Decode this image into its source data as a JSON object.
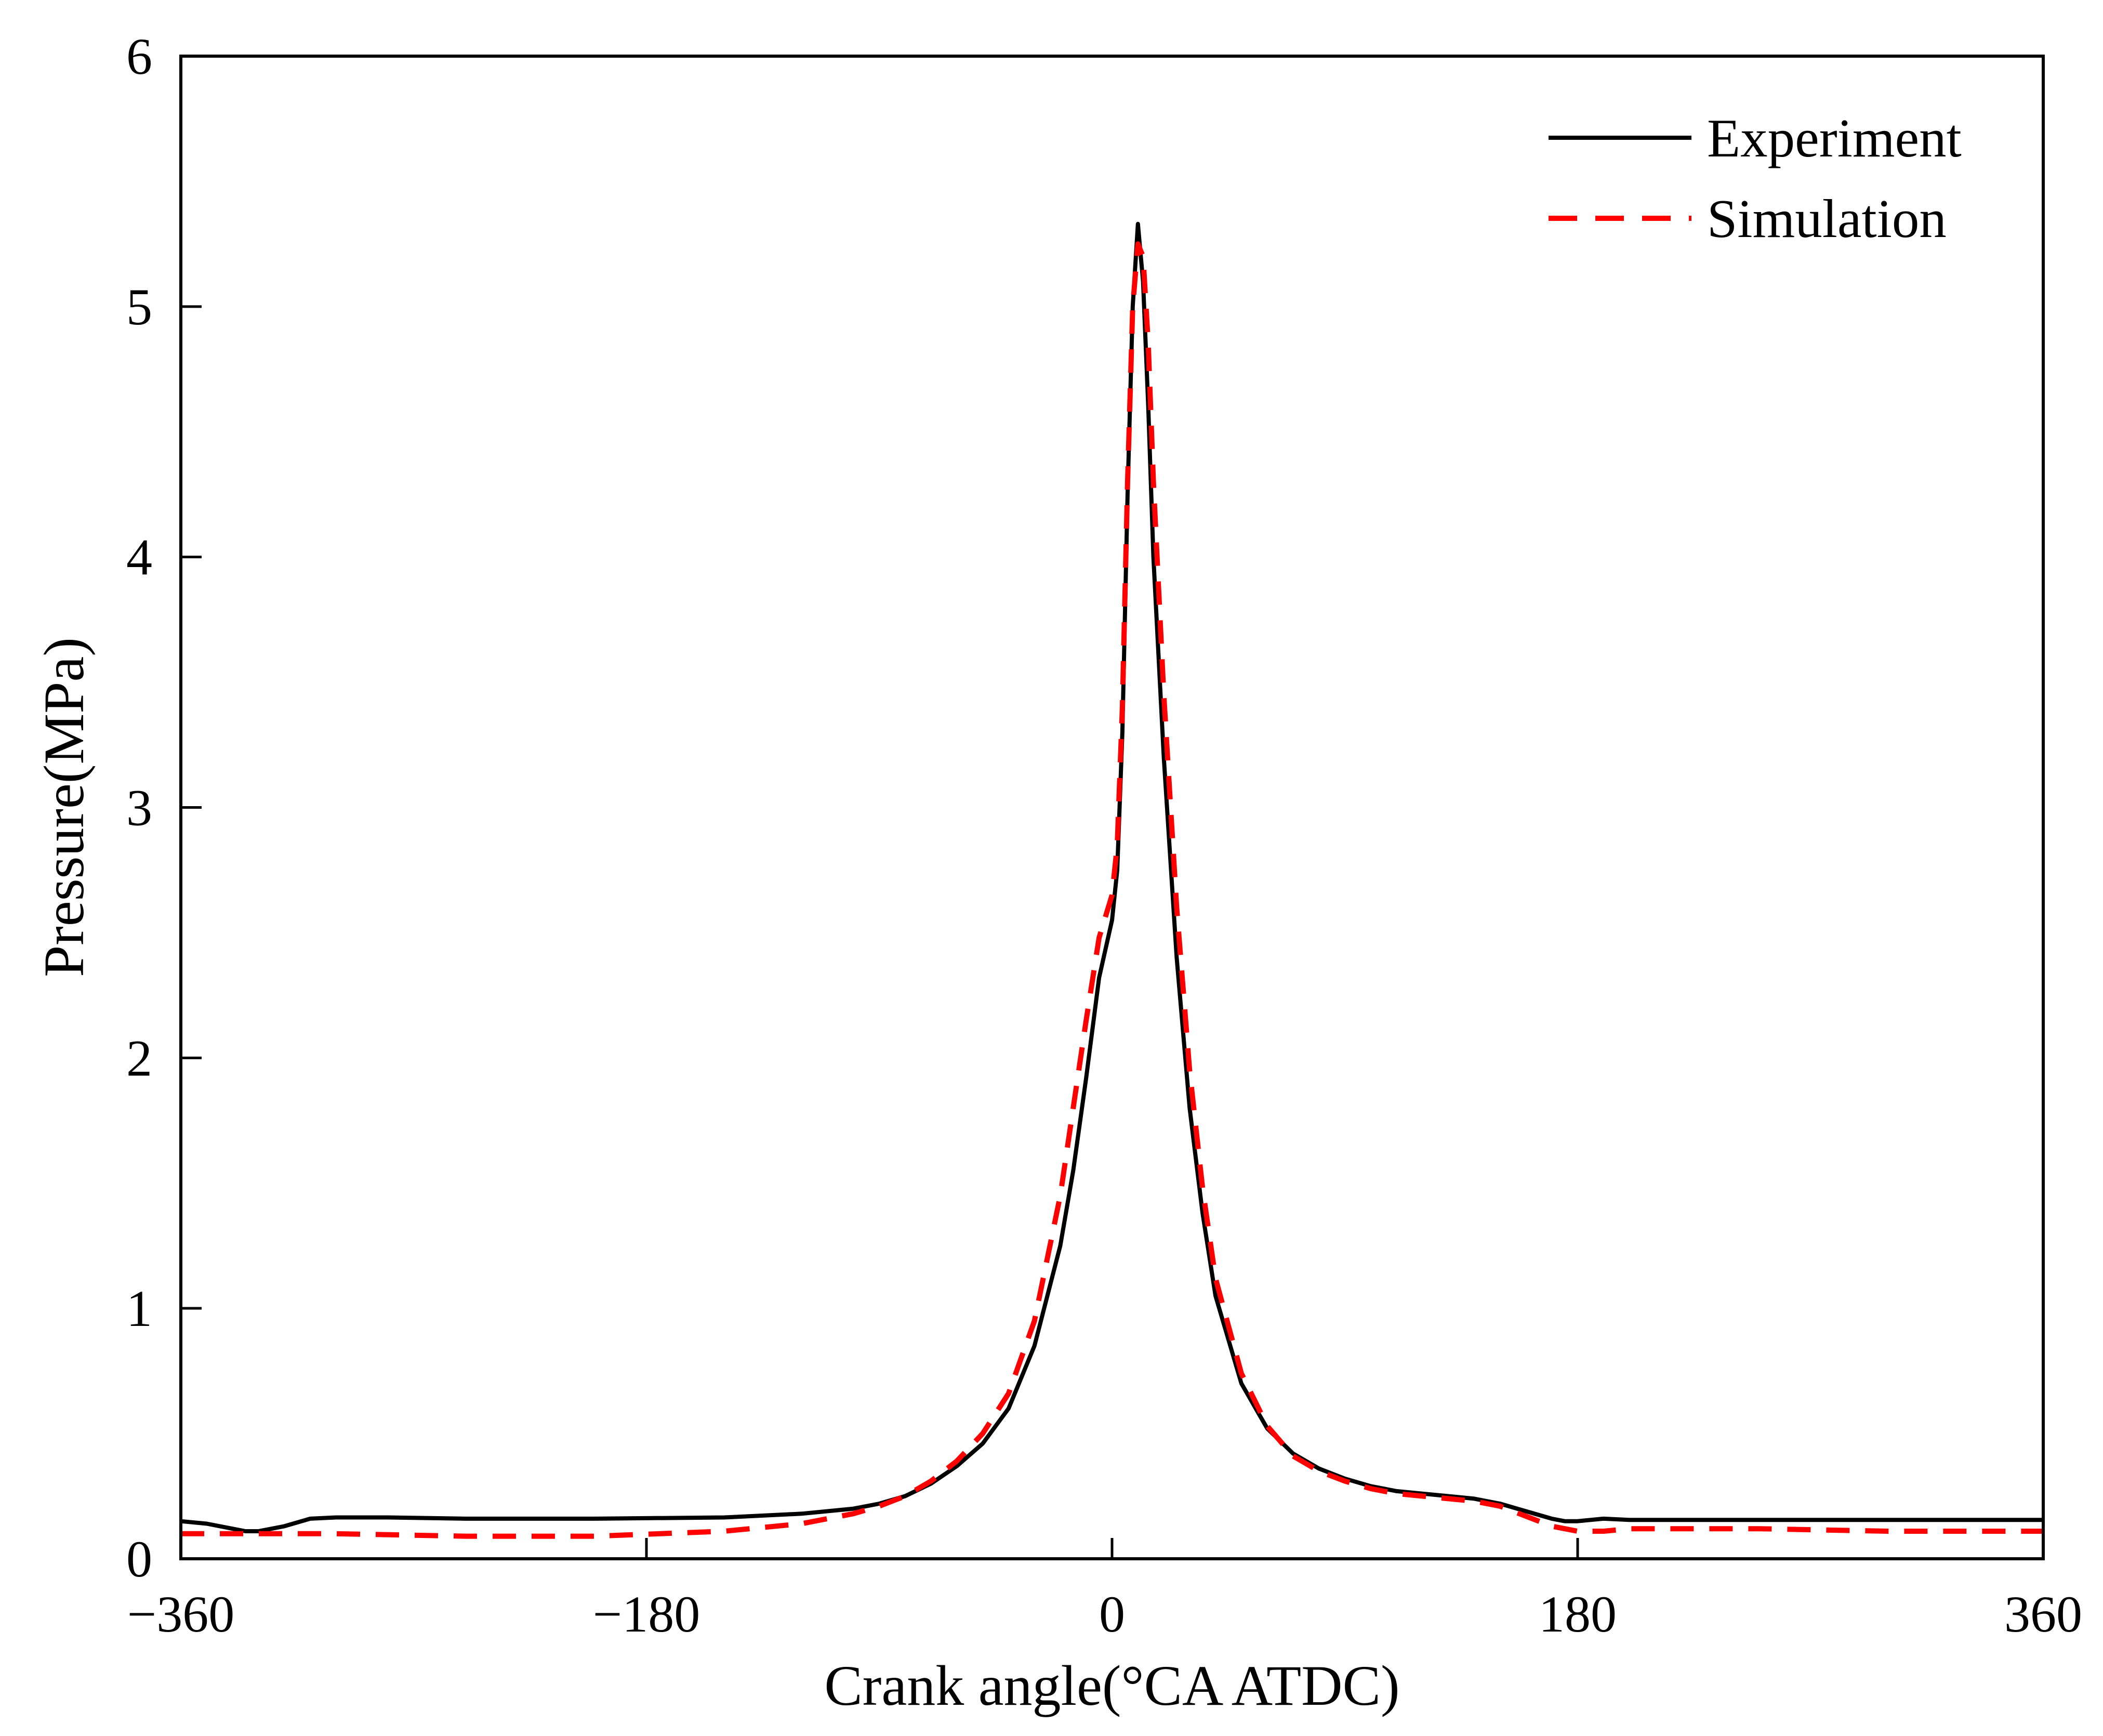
{
  "chart_data": {
    "type": "line",
    "title": "",
    "xlabel": "Crank angle(°CA ATDC)",
    "ylabel": "Pressure(MPa)",
    "xlim": [
      -360,
      360
    ],
    "ylim": [
      0,
      6
    ],
    "xticks": [
      -360,
      -180,
      0,
      180,
      360
    ],
    "xtick_labels": [
      "−360",
      "−180",
      "0",
      "180",
      "360"
    ],
    "yticks": [
      0,
      1,
      2,
      3,
      4,
      5,
      6
    ],
    "ytick_labels": [
      "0",
      "1",
      "2",
      "3",
      "4",
      "5",
      "6"
    ],
    "grid": false,
    "legend_position": "top-right",
    "series": [
      {
        "name": "Experiment",
        "color": "#000000",
        "style": "solid",
        "x": [
          -360,
          -350,
          -340,
          -335,
          -330,
          -320,
          -310,
          -300,
          -280,
          -250,
          -200,
          -150,
          -120,
          -100,
          -90,
          -80,
          -70,
          -60,
          -50,
          -40,
          -30,
          -20,
          -15,
          -10,
          -5,
          0,
          2,
          4,
          6,
          8,
          10,
          12,
          14,
          16,
          20,
          25,
          30,
          35,
          40,
          50,
          60,
          70,
          80,
          90,
          100,
          110,
          120,
          130,
          140,
          150,
          160,
          170,
          175,
          180,
          190,
          200,
          220,
          250,
          300,
          340,
          360
        ],
        "y": [
          0.15,
          0.14,
          0.12,
          0.11,
          0.11,
          0.13,
          0.16,
          0.165,
          0.165,
          0.16,
          0.16,
          0.165,
          0.18,
          0.2,
          0.22,
          0.25,
          0.3,
          0.37,
          0.46,
          0.6,
          0.85,
          1.25,
          1.55,
          1.92,
          2.32,
          2.55,
          2.75,
          3.3,
          4.25,
          5.0,
          5.33,
          5.1,
          4.6,
          4.0,
          3.2,
          2.4,
          1.8,
          1.38,
          1.05,
          0.7,
          0.52,
          0.42,
          0.36,
          0.32,
          0.29,
          0.27,
          0.26,
          0.25,
          0.24,
          0.22,
          0.19,
          0.16,
          0.15,
          0.15,
          0.16,
          0.155,
          0.155,
          0.155,
          0.155,
          0.155,
          0.155
        ]
      },
      {
        "name": "Simulation",
        "color": "#ff0000",
        "style": "dashed",
        "x": [
          -360,
          -330,
          -300,
          -250,
          -200,
          -150,
          -120,
          -100,
          -90,
          -80,
          -70,
          -60,
          -50,
          -40,
          -30,
          -20,
          -15,
          -10,
          -5,
          0,
          2,
          4,
          6,
          8,
          10,
          12,
          14,
          16,
          20,
          25,
          30,
          35,
          40,
          50,
          60,
          70,
          80,
          90,
          100,
          110,
          120,
          130,
          140,
          150,
          160,
          170,
          175,
          180,
          190,
          200,
          250,
          300,
          360
        ],
        "y": [
          0.1,
          0.1,
          0.1,
          0.09,
          0.09,
          0.11,
          0.14,
          0.18,
          0.21,
          0.25,
          0.31,
          0.39,
          0.5,
          0.66,
          0.95,
          1.45,
          1.8,
          2.15,
          2.48,
          2.65,
          2.85,
          3.4,
          4.3,
          5.0,
          5.25,
          5.2,
          4.85,
          4.3,
          3.45,
          2.6,
          1.95,
          1.48,
          1.12,
          0.74,
          0.53,
          0.41,
          0.35,
          0.31,
          0.28,
          0.26,
          0.25,
          0.24,
          0.23,
          0.21,
          0.17,
          0.13,
          0.12,
          0.11,
          0.11,
          0.12,
          0.12,
          0.11,
          0.11
        ]
      }
    ]
  }
}
